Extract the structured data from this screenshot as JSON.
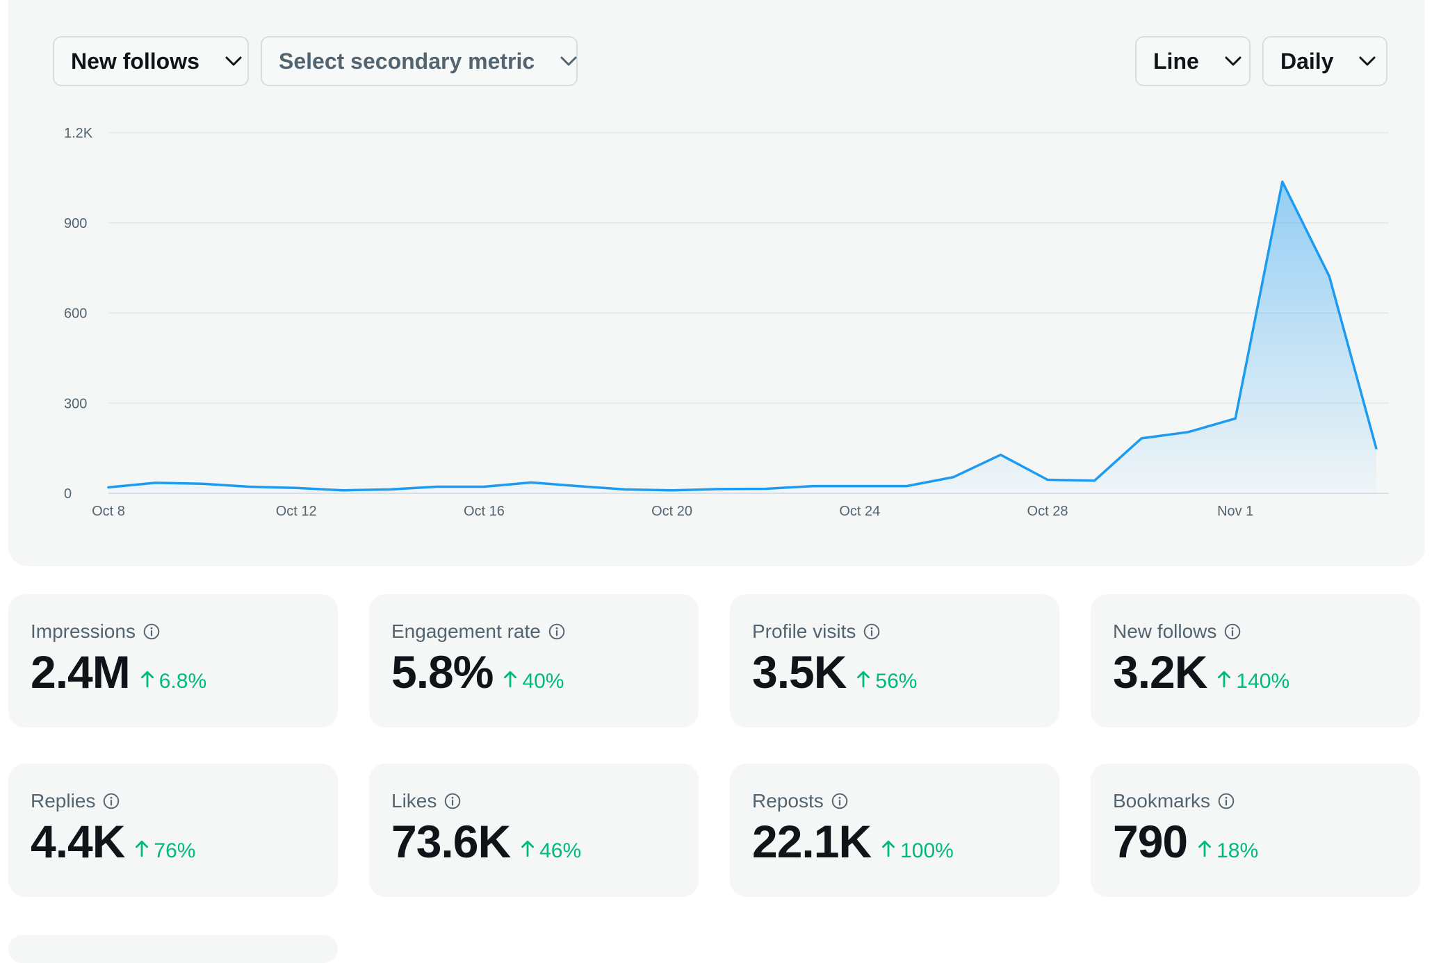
{
  "controls": {
    "primary_metric": "New follows",
    "secondary_metric_placeholder": "Select secondary metric",
    "chart_type": "Line",
    "interval": "Daily"
  },
  "colors": {
    "line": "#1d9bf0",
    "positive_change": "#00ba7c",
    "panel_background": "#f5f7f7"
  },
  "chart_data": {
    "type": "area",
    "title": "",
    "xlabel": "",
    "ylabel": "",
    "x": [
      "Oct 8",
      "Oct 9",
      "Oct 10",
      "Oct 11",
      "Oct 12",
      "Oct 13",
      "Oct 14",
      "Oct 15",
      "Oct 16",
      "Oct 17",
      "Oct 18",
      "Oct 19",
      "Oct 20",
      "Oct 21",
      "Oct 22",
      "Oct 23",
      "Oct 24",
      "Oct 25",
      "Oct 26",
      "Oct 27",
      "Oct 28",
      "Oct 29",
      "Oct 30",
      "Oct 31",
      "Nov 1",
      "Nov 2",
      "Nov 3",
      "Nov 4"
    ],
    "series": [
      {
        "values": [
          20,
          35,
          32,
          22,
          18,
          10,
          13,
          22,
          22,
          36,
          24,
          13,
          10,
          14,
          15,
          24,
          24,
          24,
          54,
          128,
          45,
          42,
          183,
          204,
          249,
          1037,
          722,
          150
        ]
      }
    ],
    "x_tick_labels": [
      "Oct 8",
      "Oct 12",
      "Oct 16",
      "Oct 20",
      "Oct 24",
      "Oct 28",
      "Nov 1"
    ],
    "y_ticks": [
      0,
      300,
      600,
      900,
      1200
    ],
    "y_tick_labels": [
      "0",
      "300",
      "600",
      "900",
      "1.2K"
    ],
    "ylim": [
      0,
      1200
    ],
    "grid": true,
    "legend": "none"
  },
  "metrics": [
    {
      "label": "Impressions",
      "value": "2.4M",
      "change": "6.8%"
    },
    {
      "label": "Engagement rate",
      "value": "5.8%",
      "change": "40%"
    },
    {
      "label": "Profile visits",
      "value": "3.5K",
      "change": "56%"
    },
    {
      "label": "New follows",
      "value": "3.2K",
      "change": "140%"
    },
    {
      "label": "Replies",
      "value": "4.4K",
      "change": "76%"
    },
    {
      "label": "Likes",
      "value": "73.6K",
      "change": "46%"
    },
    {
      "label": "Reposts",
      "value": "22.1K",
      "change": "100%"
    },
    {
      "label": "Bookmarks",
      "value": "790",
      "change": "18%"
    }
  ]
}
